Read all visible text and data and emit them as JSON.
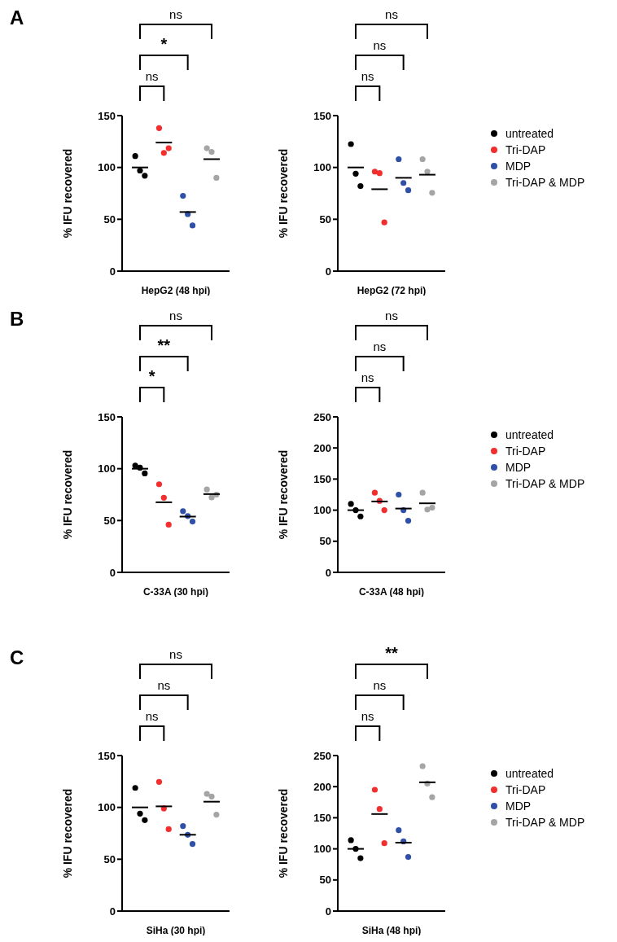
{
  "chart_data": [
    {
      "type": "scatter",
      "title": "A",
      "xlabel": "HepG2 (48 hpi)",
      "ylabel": "% IFU recovered",
      "categories": [
        null,
        null,
        null,
        null
      ],
      "ylim": [
        0,
        150
      ],
      "yticks": [
        0,
        50,
        100,
        150
      ],
      "marker": "circle",
      "annotations": [
        "ns",
        "*",
        "ns"
      ],
      "series": [
        {
          "color": "#000000",
          "values": [
            111,
            null,
            null,
            null
          ]
        },
        {
          "color": "#000000",
          "values": [
            97,
            null,
            null,
            null
          ]
        },
        {
          "color": "#000000",
          "values": [
            92,
            null,
            null,
            null
          ]
        },
        {
          "color": "#f22e2e",
          "values": [
            null,
            138,
            null,
            null
          ]
        },
        {
          "color": "#f22e2e",
          "values": [
            null,
            114,
            null,
            null
          ]
        },
        {
          "color": "#f22e2e",
          "values": [
            null,
            118.5,
            null,
            null
          ]
        },
        {
          "color": "#3050a8",
          "values": [
            null,
            null,
            72.6,
            null
          ]
        },
        {
          "color": "#3050a8",
          "values": [
            null,
            null,
            55,
            null
          ]
        },
        {
          "color": "#3050a8",
          "values": [
            null,
            null,
            44,
            null
          ]
        },
        {
          "color": "#a5a5a5",
          "values": [
            null,
            null,
            null,
            118.5
          ]
        },
        {
          "color": "#a5a5a5",
          "values": [
            null,
            null,
            null,
            115
          ]
        },
        {
          "color": "#a5a5a5",
          "values": [
            null,
            null,
            null,
            90
          ]
        },
        {
          "type": "box",
          "color": "#000000",
          "boxes": [
            {
              "low": 100,
              "q1": 100,
              "median": 100,
              "q3": 100,
              "high": 100
            },
            {
              "low": 124,
              "q1": 124,
              "median": 124,
              "q3": 124,
              "high": 124
            },
            {
              "low": 57,
              "q1": 57,
              "median": 57,
              "q3": 57,
              "high": 57
            },
            {
              "low": 108,
              "q1": 108,
              "median": 108,
              "q3": 108,
              "high": 108
            }
          ]
        }
      ]
    },
    {
      "type": "scatter",
      "xlabel": "HepG2 (72 hpi)",
      "ylabel": "% IFU recovered",
      "categories": [
        null,
        null,
        null,
        null
      ],
      "ylim": [
        0,
        150
      ],
      "yticks": [
        0,
        50,
        100,
        150
      ],
      "marker": "circle",
      "legend": "right",
      "annotations": [
        "ns",
        "ns",
        "ns"
      ],
      "series": [
        {
          "name": "untreated",
          "color": "#000000",
          "values": [
            122.5,
            null,
            null,
            null
          ]
        },
        {
          "color": "#000000",
          "values": [
            94,
            null,
            null,
            null
          ]
        },
        {
          "color": "#000000",
          "values": [
            82,
            null,
            null,
            null
          ]
        },
        {
          "name": "Tri-DAP",
          "color": "#f22e2e",
          "values": [
            null,
            96,
            null,
            null
          ]
        },
        {
          "color": "#f22e2e",
          "values": [
            null,
            94.5,
            null,
            null
          ]
        },
        {
          "color": "#f22e2e",
          "values": [
            null,
            47,
            null,
            null
          ]
        },
        {
          "name": "MDP",
          "color": "#3050a8",
          "values": [
            null,
            null,
            108,
            null
          ]
        },
        {
          "color": "#3050a8",
          "values": [
            null,
            null,
            85,
            null
          ]
        },
        {
          "color": "#3050a8",
          "values": [
            null,
            null,
            78,
            null
          ]
        },
        {
          "name": "Tri-DAP & MDP",
          "color": "#a5a5a5",
          "values": [
            null,
            null,
            null,
            108
          ]
        },
        {
          "color": "#a5a5a5",
          "values": [
            null,
            null,
            null,
            96
          ]
        },
        {
          "color": "#a5a5a5",
          "values": [
            null,
            null,
            null,
            75.5
          ]
        },
        {
          "type": "box",
          "color": "#000000",
          "boxes": [
            {
              "low": 100,
              "q1": 100,
              "median": 100,
              "q3": 100,
              "high": 100
            },
            {
              "low": 79,
              "q1": 79,
              "median": 79,
              "q3": 79,
              "high": 79
            },
            {
              "low": 90,
              "q1": 90,
              "median": 90,
              "q3": 90,
              "high": 90
            },
            {
              "low": 93,
              "q1": 93,
              "median": 93,
              "q3": 93,
              "high": 93
            }
          ]
        }
      ]
    },
    {
      "type": "scatter",
      "title": "B",
      "xlabel": "C-33A (30 hpi)",
      "ylabel": "% IFU recovered",
      "categories": [
        null,
        null,
        null,
        null
      ],
      "ylim": [
        0,
        150
      ],
      "yticks": [
        0,
        50,
        100,
        150
      ],
      "marker": "circle",
      "annotations": [
        "*",
        "**",
        "ns"
      ],
      "series": [
        {
          "color": "#000000",
          "values": [
            103,
            null,
            null,
            null
          ]
        },
        {
          "color": "#000000",
          "values": [
            101,
            null,
            null,
            null
          ]
        },
        {
          "color": "#000000",
          "values": [
            95.5,
            null,
            null,
            null
          ]
        },
        {
          "color": "#f22e2e",
          "values": [
            null,
            85,
            null,
            null
          ]
        },
        {
          "color": "#f22e2e",
          "values": [
            null,
            72,
            null,
            null
          ]
        },
        {
          "color": "#f22e2e",
          "values": [
            null,
            46,
            null,
            null
          ]
        },
        {
          "color": "#3050a8",
          "values": [
            null,
            null,
            59,
            null
          ]
        },
        {
          "color": "#3050a8",
          "values": [
            null,
            null,
            54.3,
            null
          ]
        },
        {
          "color": "#3050a8",
          "values": [
            null,
            null,
            49,
            null
          ]
        },
        {
          "color": "#a5a5a5",
          "values": [
            null,
            null,
            null,
            80
          ]
        },
        {
          "color": "#a5a5a5",
          "values": [
            null,
            null,
            null,
            72.3
          ]
        },
        {
          "color": "#a5a5a5",
          "values": [
            null,
            null,
            null,
            75
          ]
        },
        {
          "type": "box",
          "color": "#000000",
          "boxes": [
            {
              "low": 100,
              "q1": 100,
              "median": 100,
              "q3": 100,
              "high": 100
            },
            {
              "low": 67.6,
              "q1": 67.6,
              "median": 67.6,
              "q3": 67.6,
              "high": 67.6
            },
            {
              "low": 53.8,
              "q1": 53.8,
              "median": 53.8,
              "q3": 53.8,
              "high": 53.8
            },
            {
              "low": 75.5,
              "q1": 75.5,
              "median": 75.5,
              "q3": 75.5,
              "high": 75.5
            }
          ]
        }
      ]
    },
    {
      "type": "scatter",
      "xlabel": "C-33A (48 hpi)",
      "ylabel": "% IFU recovered",
      "categories": [
        null,
        null,
        null,
        null
      ],
      "ylim": [
        0,
        250
      ],
      "yticks": [
        0,
        50,
        100,
        150,
        200,
        250
      ],
      "marker": "circle",
      "legend": "right",
      "annotations": [
        "ns",
        "ns",
        "ns"
      ],
      "series": [
        {
          "name": "untreated",
          "color": "#000000",
          "values": [
            110,
            null,
            null,
            null
          ]
        },
        {
          "color": "#000000",
          "values": [
            100,
            null,
            null,
            null
          ]
        },
        {
          "color": "#000000",
          "values": [
            90,
            null,
            null,
            null
          ]
        },
        {
          "name": "Tri-DAP",
          "color": "#f22e2e",
          "values": [
            null,
            128,
            null,
            null
          ]
        },
        {
          "color": "#f22e2e",
          "values": [
            null,
            115,
            null,
            null
          ]
        },
        {
          "color": "#f22e2e",
          "values": [
            null,
            100,
            null,
            null
          ]
        },
        {
          "name": "MDP",
          "color": "#3050a8",
          "values": [
            null,
            null,
            125,
            null
          ]
        },
        {
          "color": "#3050a8",
          "values": [
            null,
            null,
            100,
            null
          ]
        },
        {
          "color": "#3050a8",
          "values": [
            null,
            null,
            83,
            null
          ]
        },
        {
          "name": "Tri-DAP & MDP",
          "color": "#a5a5a5",
          "values": [
            null,
            null,
            null,
            128
          ]
        },
        {
          "color": "#a5a5a5",
          "values": [
            null,
            null,
            null,
            101
          ]
        },
        {
          "color": "#a5a5a5",
          "values": [
            null,
            null,
            null,
            104
          ]
        },
        {
          "type": "box",
          "color": "#000000",
          "boxes": [
            {
              "low": 100,
              "q1": 100,
              "median": 100,
              "q3": 100,
              "high": 100
            },
            {
              "low": 114,
              "q1": 114,
              "median": 114,
              "q3": 114,
              "high": 114
            },
            {
              "low": 102.6,
              "q1": 102.6,
              "median": 102.6,
              "q3": 102.6,
              "high": 102.6
            },
            {
              "low": 111,
              "q1": 111,
              "median": 111,
              "q3": 111,
              "high": 111
            }
          ]
        }
      ]
    },
    {
      "type": "scatter",
      "title": "C",
      "xlabel": "SiHa (30 hpi)",
      "ylabel": "% IFU recovered",
      "categories": [
        null,
        null,
        null,
        null
      ],
      "ylim": [
        0,
        150
      ],
      "yticks": [
        0,
        50,
        100,
        150
      ],
      "marker": "circle",
      "annotations": [
        "ns",
        "ns",
        "ns"
      ],
      "series": [
        {
          "color": "#000000",
          "values": [
            118.8,
            null,
            null,
            null
          ]
        },
        {
          "color": "#000000",
          "values": [
            94,
            null,
            null,
            null
          ]
        },
        {
          "color": "#000000",
          "values": [
            87.7,
            null,
            null,
            null
          ]
        },
        {
          "color": "#f22e2e",
          "values": [
            null,
            124.6,
            null,
            null
          ]
        },
        {
          "color": "#f22e2e",
          "values": [
            null,
            99,
            null,
            null
          ]
        },
        {
          "color": "#f22e2e",
          "values": [
            null,
            79,
            null,
            null
          ]
        },
        {
          "color": "#3050a8",
          "values": [
            null,
            null,
            82,
            null
          ]
        },
        {
          "color": "#3050a8",
          "values": [
            null,
            null,
            73.6,
            null
          ]
        },
        {
          "color": "#3050a8",
          "values": [
            null,
            null,
            64.7,
            null
          ]
        },
        {
          "color": "#a5a5a5",
          "values": [
            null,
            null,
            null,
            113
          ]
        },
        {
          "color": "#a5a5a5",
          "values": [
            null,
            null,
            null,
            110.5
          ]
        },
        {
          "color": "#a5a5a5",
          "values": [
            null,
            null,
            null,
            93
          ]
        },
        {
          "type": "box",
          "color": "#000000",
          "boxes": [
            {
              "low": 100,
              "q1": 100,
              "median": 100,
              "q3": 100,
              "high": 100
            },
            {
              "low": 101,
              "q1": 101,
              "median": 101,
              "q3": 101,
              "high": 101
            },
            {
              "low": 73.6,
              "q1": 73.6,
              "median": 73.6,
              "q3": 73.6,
              "high": 73.6
            },
            {
              "low": 105.5,
              "q1": 105.5,
              "median": 105.5,
              "q3": 105.5,
              "high": 105.5
            }
          ]
        }
      ]
    },
    {
      "type": "scatter",
      "xlabel": "SiHa (48 hpi)",
      "ylabel": "% IFU recovered",
      "categories": [
        null,
        null,
        null,
        null
      ],
      "ylim": [
        0,
        250
      ],
      "yticks": [
        0,
        50,
        100,
        150,
        200,
        250
      ],
      "marker": "circle",
      "legend": "right",
      "annotations": [
        "ns",
        "ns",
        "**"
      ],
      "series": [
        {
          "name": "untreated",
          "color": "#000000",
          "values": [
            114,
            null,
            null,
            null
          ]
        },
        {
          "color": "#000000",
          "values": [
            100,
            null,
            null,
            null
          ]
        },
        {
          "color": "#000000",
          "values": [
            85,
            null,
            null,
            null
          ]
        },
        {
          "name": "Tri-DAP",
          "color": "#f22e2e",
          "values": [
            null,
            195,
            null,
            null
          ]
        },
        {
          "color": "#f22e2e",
          "values": [
            null,
            164,
            null,
            null
          ]
        },
        {
          "color": "#f22e2e",
          "values": [
            null,
            109,
            null,
            null
          ]
        },
        {
          "name": "MDP",
          "color": "#3050a8",
          "values": [
            null,
            null,
            130,
            null
          ]
        },
        {
          "color": "#3050a8",
          "values": [
            null,
            null,
            112,
            null
          ]
        },
        {
          "color": "#3050a8",
          "values": [
            null,
            null,
            87,
            null
          ]
        },
        {
          "name": "Tri-DAP & MDP",
          "color": "#a5a5a5",
          "values": [
            null,
            null,
            null,
            233
          ]
        },
        {
          "color": "#a5a5a5",
          "values": [
            null,
            null,
            null,
            205
          ]
        },
        {
          "color": "#a5a5a5",
          "values": [
            null,
            null,
            null,
            183
          ]
        },
        {
          "type": "box",
          "color": "#000000",
          "boxes": [
            {
              "low": 100,
              "q1": 100,
              "median": 100,
              "q3": 100,
              "high": 100
            },
            {
              "low": 156,
              "q1": 156,
              "median": 156,
              "q3": 156,
              "high": 156
            },
            {
              "low": 110,
              "q1": 110,
              "median": 110,
              "q3": 110,
              "high": 110
            },
            {
              "low": 207,
              "q1": 207,
              "median": 207,
              "q3": 207,
              "high": 207
            }
          ]
        }
      ]
    }
  ]
}
